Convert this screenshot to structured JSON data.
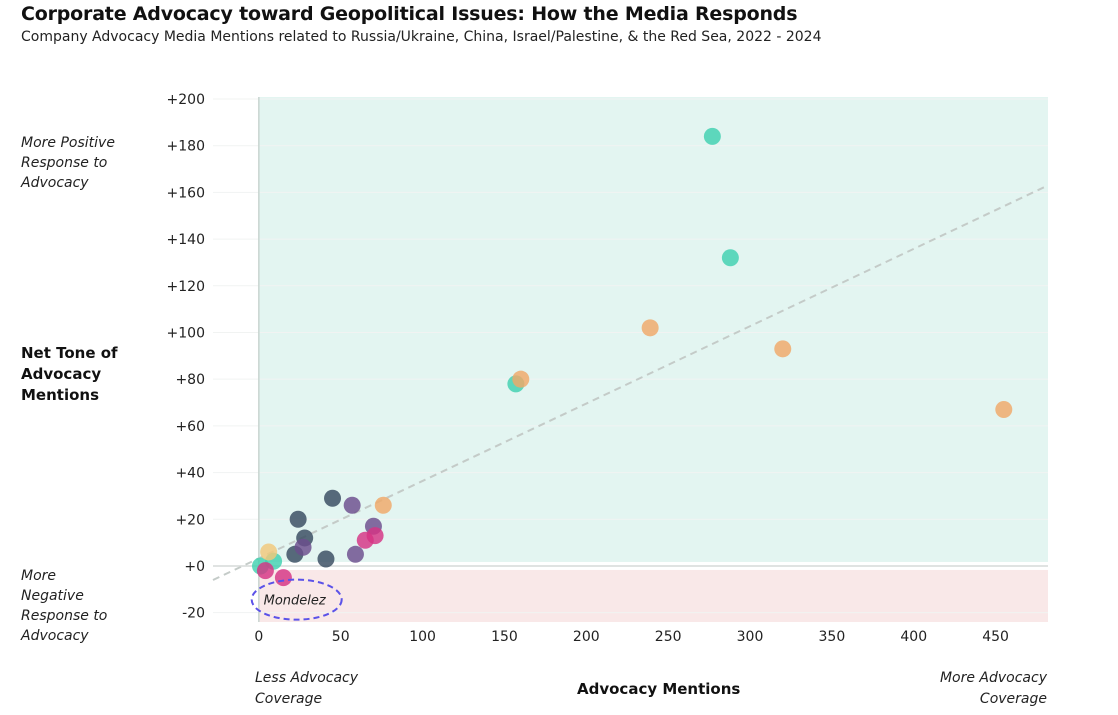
{
  "title": "Corporate Advocacy toward Geopolitical Issues: How the Media Responds",
  "subtitle": "Company Advocacy Media Mentions related to Russia/Ukraine, China, Israel/Palestine, & the Red Sea, 2022 - 2024",
  "notes": {
    "top_left": "More Positive Response to Advocacy",
    "bottom_left": "More Negative Response to Advocacy",
    "x_left": "Less Advocacy Coverage",
    "x_right": "More Advocacy Coverage"
  },
  "colors": {
    "positive_region": "#e3f5f1",
    "negative_region": "#f9e8e8",
    "trend_line": "#c4cbc8",
    "callout": "#5b52e8",
    "teal": "#3fd1b0",
    "orange": "#f0a868",
    "navy": "#374a5f",
    "purple": "#6b4d8c",
    "magenta": "#d63384",
    "yellow": "#f2c87a"
  },
  "chart_data": {
    "type": "scatter",
    "title": "Corporate Advocacy toward Geopolitical Issues: How the Media Responds",
    "subtitle": "Company Advocacy Media Mentions related to Russia/Ukraine, China, Israel/Palestine, & the Red Sea, 2022 - 2024",
    "xlabel": "Advocacy Mentions",
    "ylabel": "Net Tone of Advocacy Mentions",
    "xlim": [
      -28,
      482
    ],
    "ylim": [
      -24,
      203
    ],
    "x_ticks": [
      0,
      50,
      100,
      150,
      200,
      250,
      300,
      350,
      400,
      450
    ],
    "x_tick_labels": [
      "0",
      "50",
      "100",
      "150",
      "200",
      "250",
      "300",
      "350",
      "400",
      "450"
    ],
    "y_ticks": [
      -20,
      0,
      20,
      40,
      60,
      80,
      100,
      120,
      140,
      160,
      180,
      200
    ],
    "y_tick_labels": [
      "-20",
      "+0",
      "+20",
      "+40",
      "+60",
      "+80",
      "+100",
      "+120",
      "+140",
      "+160",
      "+180",
      "+200"
    ],
    "regions": [
      {
        "name": "positive",
        "y_from": 0,
        "y_to": 200,
        "color": "teal-tint"
      },
      {
        "name": "negative",
        "y_from": -24,
        "y_to": 0,
        "color": "red-tint"
      }
    ],
    "trend_line": {
      "style": "dashed",
      "from": [
        -28,
        -6
      ],
      "to": [
        482,
        163
      ]
    },
    "annotations": [
      {
        "text": "Mondelez",
        "x": 17,
        "y": -14,
        "shape": "dashed-ellipse"
      }
    ],
    "points": [
      {
        "x": 277,
        "y": 184,
        "color": "teal"
      },
      {
        "x": 288,
        "y": 132,
        "color": "teal"
      },
      {
        "x": 157,
        "y": 78,
        "color": "teal"
      },
      {
        "x": 9,
        "y": 2,
        "color": "teal"
      },
      {
        "x": 1,
        "y": 0,
        "color": "teal"
      },
      {
        "x": 239,
        "y": 102,
        "color": "orange"
      },
      {
        "x": 320,
        "y": 93,
        "color": "orange"
      },
      {
        "x": 160,
        "y": 80,
        "color": "orange"
      },
      {
        "x": 455,
        "y": 67,
        "color": "orange"
      },
      {
        "x": 76,
        "y": 26,
        "color": "orange"
      },
      {
        "x": 6,
        "y": 6,
        "color": "yellow"
      },
      {
        "x": 45,
        "y": 29,
        "color": "navy"
      },
      {
        "x": 24,
        "y": 20,
        "color": "navy"
      },
      {
        "x": 28,
        "y": 12,
        "color": "navy"
      },
      {
        "x": 22,
        "y": 5,
        "color": "navy"
      },
      {
        "x": 41,
        "y": 3,
        "color": "navy"
      },
      {
        "x": 57,
        "y": 26,
        "color": "purple"
      },
      {
        "x": 70,
        "y": 17,
        "color": "purple"
      },
      {
        "x": 27,
        "y": 8,
        "color": "purple"
      },
      {
        "x": 59,
        "y": 5,
        "color": "purple"
      },
      {
        "x": 71,
        "y": 13,
        "color": "magenta"
      },
      {
        "x": 65,
        "y": 11,
        "color": "magenta"
      },
      {
        "x": 15,
        "y": -5,
        "color": "magenta"
      },
      {
        "x": 4,
        "y": -2,
        "color": "magenta"
      }
    ]
  }
}
